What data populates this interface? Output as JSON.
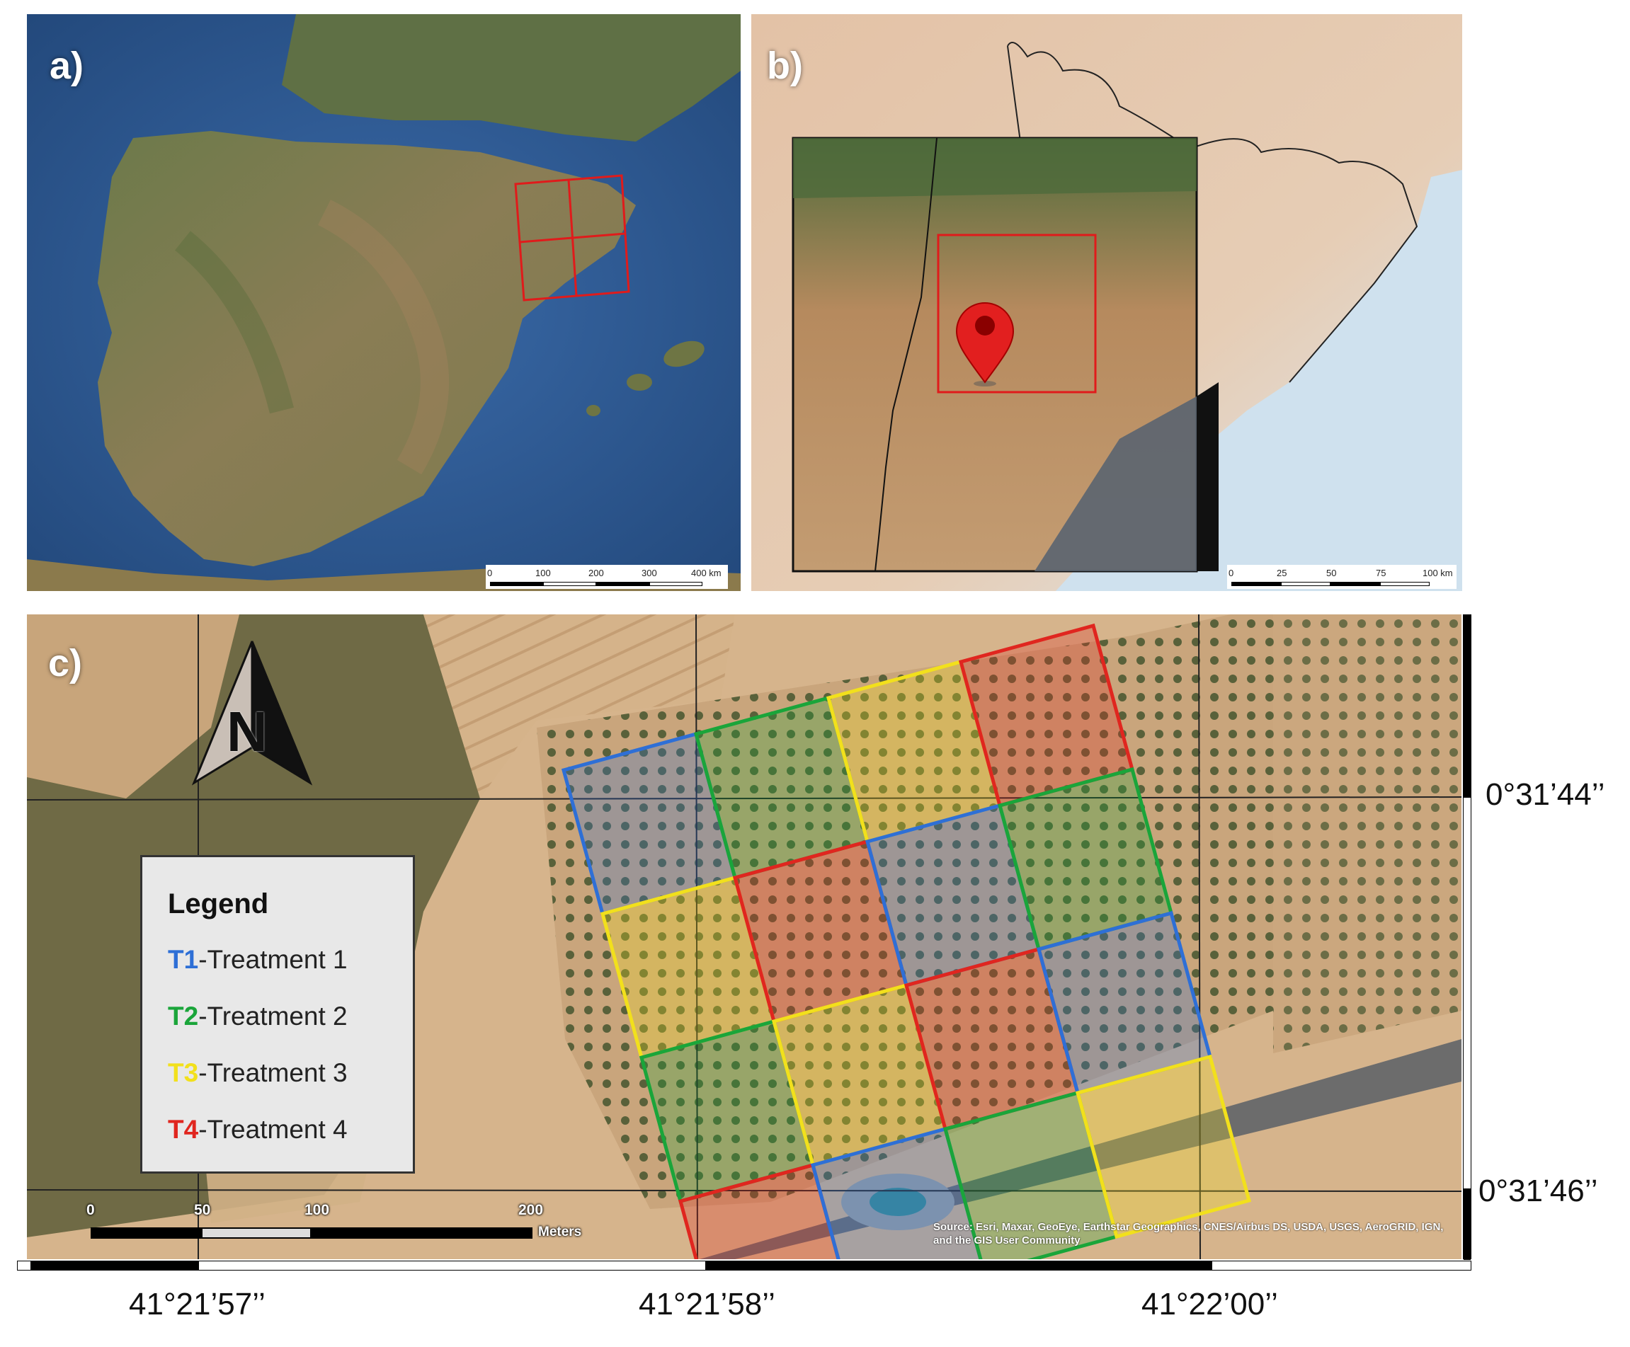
{
  "panels": {
    "a": {
      "label": "a)",
      "scale_bar": {
        "ticks": [
          "0",
          "100",
          "200",
          "300",
          "400 km"
        ]
      }
    },
    "b": {
      "label": "b)",
      "scale_bar": {
        "ticks": [
          "0",
          "25",
          "50",
          "75",
          "100 km"
        ]
      }
    },
    "c": {
      "label": "c)",
      "north_arrow": "N",
      "legend": {
        "title": "Legend",
        "items": [
          {
            "code": "T1",
            "label": "-Treatment 1",
            "color": "#2e6fd6"
          },
          {
            "code": "T2",
            "label": "-Treatment 2",
            "color": "#1aa53a"
          },
          {
            "code": "T3",
            "label": "-Treatment 3",
            "color": "#f2e01c"
          },
          {
            "code": "T4",
            "label": "-Treatment 4",
            "color": "#e0261f"
          }
        ]
      },
      "scale_bar": {
        "ticks": [
          "0",
          "50",
          "100",
          "200"
        ],
        "unit": "Meters"
      },
      "attribution": "Source: Esri, Maxar, GeoEye, Earthstar Geographics, CNES/Airbus DS, USDA, USGS, AeroGRID, IGN, and the GIS User Community",
      "coords_right": [
        "0°31’44’’",
        "0°31’46’’"
      ],
      "coords_bottom": [
        "41°21’57’’",
        "41°21’58’’",
        "41°22’00’’"
      ]
    }
  },
  "treatment_colors": {
    "T1": "#2e6fd6",
    "T2": "#1aa53a",
    "T3": "#f2e01c",
    "T4": "#e0261f"
  },
  "plot_grid": [
    [
      "T1",
      "T2",
      "T3",
      "T4"
    ],
    [
      "T3",
      "T4",
      "T1",
      "T2"
    ],
    [
      "T2",
      "T3",
      "T4",
      "T1"
    ],
    [
      "T4",
      "T1",
      "T2",
      "T3"
    ]
  ]
}
